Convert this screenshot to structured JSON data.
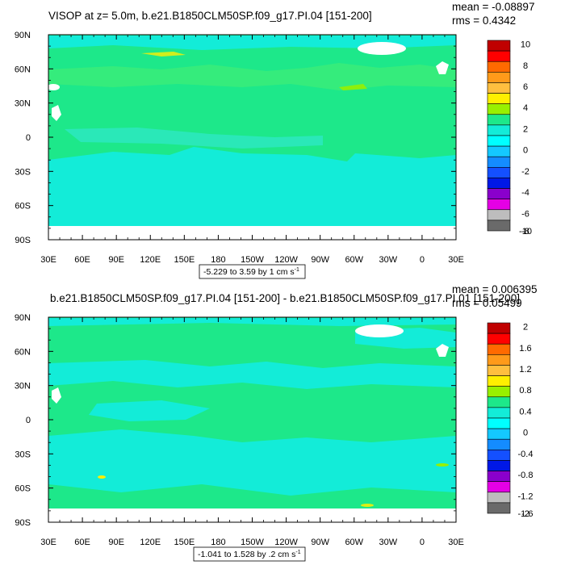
{
  "colors": {
    "ocean": "#1de88a",
    "ocean_alt": "#35ec7c",
    "cyan": "#13ecd8",
    "land": "#ffffff",
    "frame": "#000000"
  },
  "chart_data": [
    {
      "type": "heatmap",
      "title": "VISOP at z=   5.0m, b.e21.B1850CLM50SP.f09_g17.PI.04 [151-200]",
      "stats": {
        "mean": "mean = -0.08897",
        "rms": "rms = 0.4342"
      },
      "x_ticks": [
        "30E",
        "60E",
        "90E",
        "120E",
        "150E",
        "180",
        "150W",
        "120W",
        "90W",
        "60W",
        "30W",
        "0",
        "30E"
      ],
      "y_ticks": [
        "90N",
        "60N",
        "30N",
        "0",
        "30S",
        "60S",
        "90S"
      ],
      "xlim": [
        30,
        390
      ],
      "ylim": [
        -90,
        90
      ],
      "info_label": "-5.229 to 3.59 by 1 cm s",
      "info_sup": "-1",
      "colorbar": {
        "labels": [
          "10",
          "8",
          "6",
          "4",
          "2",
          "0",
          "-2",
          "-4",
          "-6",
          "-8",
          "-10"
        ],
        "colors": [
          "#c00000",
          "#ff0000",
          "#ff6a00",
          "#ff9a1a",
          "#ffbf3f",
          "#ffef00",
          "#98f000",
          "#1de88a",
          "#13ecd8",
          "#00ffff",
          "#14c8ff",
          "#148cff",
          "#1450ff",
          "#0018e6",
          "#8a00cc",
          "#e500e5",
          "#bdbdbd",
          "#6a6a6a"
        ]
      }
    },
    {
      "type": "heatmap",
      "title": "b.e21.B1850CLM50SP.f09_g17.PI.04 [151-200] - b.e21.B1850CLM50SP.f09_g17.PI.01 [151-200]",
      "stats": {
        "mean": "mean = 0.006395",
        "rms": "rms = 0.05499"
      },
      "x_ticks": [
        "30E",
        "60E",
        "90E",
        "120E",
        "150E",
        "180",
        "150W",
        "120W",
        "90W",
        "60W",
        "30W",
        "0",
        "30E"
      ],
      "y_ticks": [
        "90N",
        "60N",
        "30N",
        "0",
        "30S",
        "60S",
        "90S"
      ],
      "xlim": [
        30,
        390
      ],
      "ylim": [
        -90,
        90
      ],
      "info_label": "-1.041 to 1.528 by .2 cm s",
      "info_sup": "-1",
      "colorbar": {
        "labels": [
          "2",
          "1.6",
          "1.2",
          "0.8",
          "0.4",
          "0",
          "-0.4",
          "-0.8",
          "-1.2",
          "-1.6",
          "-2"
        ],
        "colors": [
          "#c00000",
          "#ff0000",
          "#ff6a00",
          "#ff9a1a",
          "#ffbf3f",
          "#ffef00",
          "#98f000",
          "#1de88a",
          "#13ecd8",
          "#00ffff",
          "#14c8ff",
          "#148cff",
          "#1450ff",
          "#0018e6",
          "#8a00cc",
          "#e500e5",
          "#bdbdbd",
          "#6a6a6a"
        ]
      }
    }
  ]
}
